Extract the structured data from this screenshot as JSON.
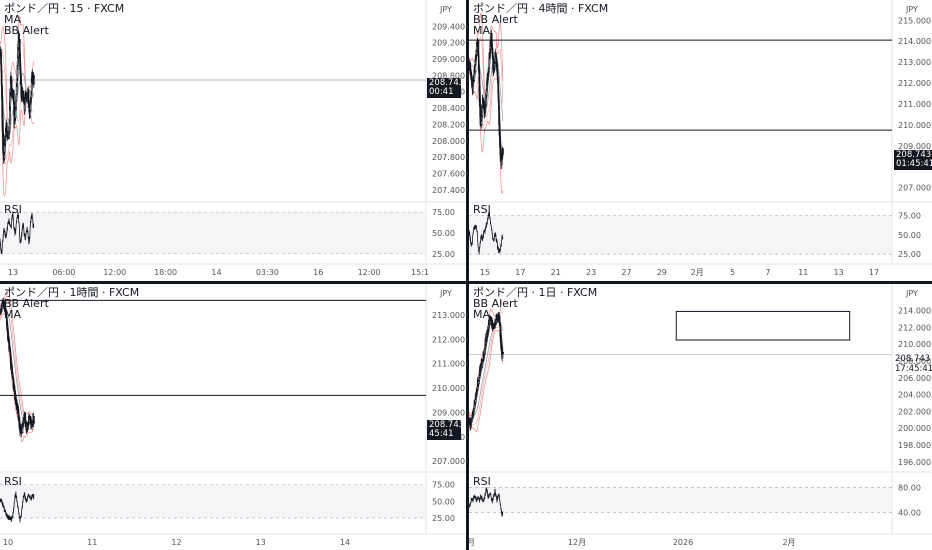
{
  "colors": {
    "candle": "#131722",
    "band": "#f28b8b",
    "ma_dark": "#3a3a3a",
    "ma_light": "#9aa0aa",
    "grid_text": "#555555",
    "rsi_low": "#f23645",
    "rsi_high": "#22ab94",
    "level_line": "#131722",
    "current_line": "#9aa0aa"
  },
  "panes": [
    {
      "id": "m15",
      "title": "ポンド／円 · 15 · FXCM",
      "indicators": [
        "MA",
        "BB Alert"
      ],
      "currency": "JPY",
      "price_tag": {
        "price": "208.743",
        "timer": "00:41"
      },
      "price_axis": [
        "209.400",
        "209.200",
        "209.000",
        "208.800",
        "208.600",
        "208.400",
        "208.200",
        "208.000",
        "207.800",
        "207.600",
        "207.400"
      ],
      "time_axis": [
        "13",
        "06:00",
        "12:00",
        "18:00",
        "14",
        "03:30",
        "16",
        "12:00",
        "15:1"
      ],
      "rsi_label": "RSI",
      "rsi_axis": [
        "75.00",
        "50.00",
        "25.00"
      ],
      "chart_data": {
        "type": "candlestick",
        "instrument": "GBP/JPY",
        "timeframe": "15",
        "ylim": [
          207.3,
          209.55
        ],
        "current_price": 208.743,
        "horizontal_lines": [
          208.743
        ],
        "close_path": [
          209.1,
          208.9,
          208.3,
          207.9,
          207.7,
          208.0,
          208.1,
          208.2,
          208.05,
          208.0,
          208.1,
          208.5,
          208.8,
          208.6,
          208.5,
          208.6,
          208.2,
          208.3,
          208.5,
          208.7,
          209.0,
          209.3,
          209.2,
          208.8,
          208.6,
          208.5,
          208.6,
          208.5,
          208.4,
          208.6,
          208.5,
          208.5,
          208.6,
          208.4,
          208.3,
          208.5,
          208.7,
          208.8,
          208.75,
          208.74
        ],
        "rsi": [
          40,
          30,
          25,
          38,
          50,
          55,
          48,
          44,
          52,
          60,
          66,
          62,
          55,
          58,
          72,
          74,
          60,
          50,
          52,
          62,
          70,
          73,
          60,
          40,
          38,
          48,
          58,
          60,
          50,
          44,
          48,
          56,
          50,
          40,
          42,
          58,
          70,
          72,
          60,
          56
        ],
        "rsi_ylim": [
          20,
          80
        ]
      }
    },
    {
      "id": "h4",
      "title": "ポンド／円 · 4時間 · FXCM",
      "indicators": [
        "BB Alert",
        "MA"
      ],
      "currency": "JPY",
      "price_tag": {
        "price": "208.743",
        "timer": "01:45:41"
      },
      "price_axis": [
        "215.000",
        "214.000",
        "213.000",
        "212.000",
        "211.000",
        "210.000",
        "209.000",
        "208.000",
        "207.000"
      ],
      "time_axis": [
        "15",
        "17",
        "21",
        "23",
        "27",
        "29",
        "2月",
        "5",
        "7",
        "11",
        "13",
        "17"
      ],
      "rsi_label": "RSI",
      "rsi_axis": [
        "75.00",
        "50.00",
        "25.00"
      ],
      "chart_data": {
        "type": "candlestick",
        "instrument": "GBP/JPY",
        "timeframe": "4H",
        "ylim": [
          206.6,
          215.3
        ],
        "current_price": 208.743,
        "horizontal_lines": [
          214.05,
          209.75
        ],
        "close_path": [
          212.9,
          212.6,
          212.3,
          212.0,
          211.7,
          212.2,
          212.5,
          212.9,
          213.4,
          213.9,
          214.0,
          212.8,
          211.2,
          210.0,
          210.2,
          210.7,
          211.2,
          211.0,
          210.5,
          210.9,
          211.5,
          212.0,
          212.3,
          212.8,
          213.3,
          213.8,
          214.3,
          213.6,
          212.8,
          212.5,
          213.0,
          213.4,
          213.1,
          212.5,
          211.5,
          210.3,
          209.2,
          208.5,
          208.2,
          208.7,
          208.74
        ],
        "rsi": [
          55,
          50,
          40,
          35,
          42,
          55,
          58,
          60,
          62,
          58,
          50,
          30,
          28,
          35,
          45,
          48,
          44,
          50,
          52,
          55,
          60,
          65,
          70,
          76,
          78,
          72,
          62,
          55,
          45,
          42,
          48,
          52,
          46,
          40,
          33,
          30,
          28,
          32,
          38,
          48,
          46
        ],
        "rsi_ylim": [
          20,
          85
        ]
      }
    },
    {
      "id": "h1",
      "title": "ポンド／円 · 1時間 · FXCM",
      "indicators": [
        "BB Alert",
        "MA"
      ],
      "currency": "JPY",
      "price_tag": {
        "price": "208.743",
        "timer": "45:41"
      },
      "price_axis": [
        "213.000",
        "212.000",
        "211.000",
        "210.000",
        "209.000",
        "208.000",
        "207.000"
      ],
      "time_axis": [
        "10",
        "11",
        "12",
        "13",
        "14"
      ],
      "rsi_label": "RSI",
      "rsi_axis": [
        "75.00",
        "50.00",
        "25.00"
      ],
      "chart_data": {
        "type": "candlestick",
        "instrument": "GBP/JPY",
        "timeframe": "1H",
        "ylim": [
          206.8,
          213.7
        ],
        "current_price": 208.743,
        "horizontal_lines": [
          213.6,
          209.7
        ],
        "close_path": [
          213.0,
          213.2,
          213.4,
          213.5,
          213.3,
          213.0,
          212.6,
          212.2,
          211.8,
          211.4,
          211.0,
          210.7,
          210.3,
          210.0,
          209.6,
          209.4,
          209.2,
          208.9,
          208.5,
          208.3,
          208.2,
          208.4,
          208.6,
          208.9,
          208.5,
          208.3,
          208.5,
          208.7,
          208.9,
          208.6,
          208.5,
          208.7,
          208.74
        ],
        "rsi": [
          50,
          52,
          48,
          44,
          38,
          34,
          30,
          28,
          26,
          25,
          24,
          23,
          30,
          40,
          55,
          62,
          50,
          40,
          30,
          22,
          28,
          40,
          55,
          62,
          55,
          50,
          54,
          60,
          58,
          52,
          56,
          58,
          57
        ],
        "rsi_ylim": [
          10,
          85
        ]
      }
    },
    {
      "id": "d1",
      "title": "ポンド／円 · 1日 · FXCM",
      "indicators": [
        "BB Alert",
        "MA"
      ],
      "currency": "JPY",
      "price_tag": {
        "price": "208.743",
        "timer": "17:45:41"
      },
      "price_axis": [
        "214.000",
        "212.000",
        "210.000",
        "208.000",
        "206.000",
        "204.000",
        "202.000",
        "200.000",
        "198.000",
        "196.000"
      ],
      "time_axis": [
        "月",
        "12月",
        "2026",
        "2月"
      ],
      "rsi_label": "RSI",
      "rsi_axis": [
        "80.00",
        "40.00"
      ],
      "chart_data": {
        "type": "candlestick",
        "instrument": "GBP/JPY",
        "timeframe": "1D",
        "ylim": [
          195.5,
          215.5
        ],
        "current_price": 208.743,
        "box": {
          "y_top": 213.9,
          "y_bottom": 210.5
        },
        "close_path": [
          201.3,
          200.4,
          200.8,
          201.5,
          202.2,
          202.8,
          203.5,
          204.2,
          204.9,
          205.6,
          206.0,
          206.6,
          207.2,
          207.7,
          208.3,
          208.8,
          209.5,
          210.3,
          211.0,
          211.6,
          212.2,
          212.8,
          213.0,
          212.6,
          212.2,
          212.0,
          211.8,
          212.4,
          212.9,
          213.2,
          213.4,
          212.8,
          211.5,
          209.4,
          208.5,
          208.74
        ],
        "rsi": [
          48,
          52,
          58,
          62,
          58,
          64,
          66,
          62,
          60,
          64,
          62,
          58,
          66,
          64,
          60,
          58,
          62,
          70,
          78,
          72,
          64,
          66,
          70,
          64,
          58,
          62,
          68,
          74,
          66,
          58,
          64,
          70,
          60,
          46,
          36,
          40
        ],
        "rsi_ylim": [
          15,
          95
        ]
      }
    }
  ]
}
